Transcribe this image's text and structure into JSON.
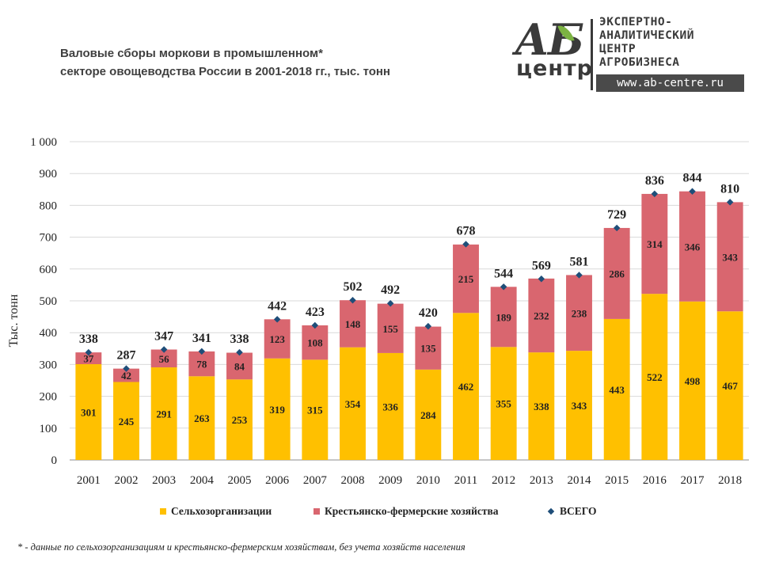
{
  "header": {
    "title_line1": "Валовые сборы моркови в промышленном*",
    "title_line2": "секторе овощеводства России в 2001-2018 гг., тыс. тонн"
  },
  "logo": {
    "mark_top": "АБ",
    "mark_bottom": "центр",
    "line1": "ЭКСПЕРТНО-",
    "line2": "АНАЛИТИЧЕСКИЙ",
    "line3": "ЦЕНТР",
    "line4": "АГРОБИЗНЕСА",
    "url": "www.ab-centre.ru"
  },
  "colors": {
    "agri_orgs": "#ffc000",
    "farms": "#d9666f",
    "total_marker": "#1f4e79",
    "grid": "#d9d9d9",
    "axis_text": "#222222"
  },
  "chart_data": {
    "type": "bar",
    "stacked": true,
    "categories": [
      "2001",
      "2002",
      "2003",
      "2004",
      "2005",
      "2006",
      "2007",
      "2008",
      "2009",
      "2010",
      "2011",
      "2012",
      "2013",
      "2014",
      "2015",
      "2016",
      "2017",
      "2018"
    ],
    "series": [
      {
        "name": "Сельхозорганизации",
        "values": [
          301,
          245,
          291,
          263,
          253,
          319,
          315,
          354,
          336,
          284,
          462,
          355,
          338,
          343,
          443,
          522,
          498,
          467
        ]
      },
      {
        "name": "Крестьянско-фермерские хозяйства",
        "values": [
          37,
          42,
          56,
          78,
          84,
          123,
          108,
          148,
          155,
          135,
          215,
          189,
          232,
          238,
          286,
          314,
          346,
          343
        ]
      }
    ],
    "totals": {
      "name": "ВСЕГО",
      "values": [
        338,
        287,
        347,
        341,
        338,
        442,
        423,
        502,
        492,
        420,
        678,
        544,
        569,
        581,
        729,
        836,
        844,
        810
      ]
    },
    "ylabel": "Тыс. тонн",
    "ylim": [
      0,
      1000
    ],
    "yticks": [
      0,
      100,
      200,
      300,
      400,
      500,
      600,
      700,
      800,
      900,
      1000
    ],
    "ytick_labels": [
      "0",
      "100",
      "200",
      "300",
      "400",
      "500",
      "600",
      "700",
      "800",
      "900",
      "1 000"
    ],
    "grid": true,
    "legend_position": "bottom"
  },
  "footnote": "* - данные по сельхозорганизациям и крестьянско-фермерским  хозяйствам, без учета хозяйств населения"
}
